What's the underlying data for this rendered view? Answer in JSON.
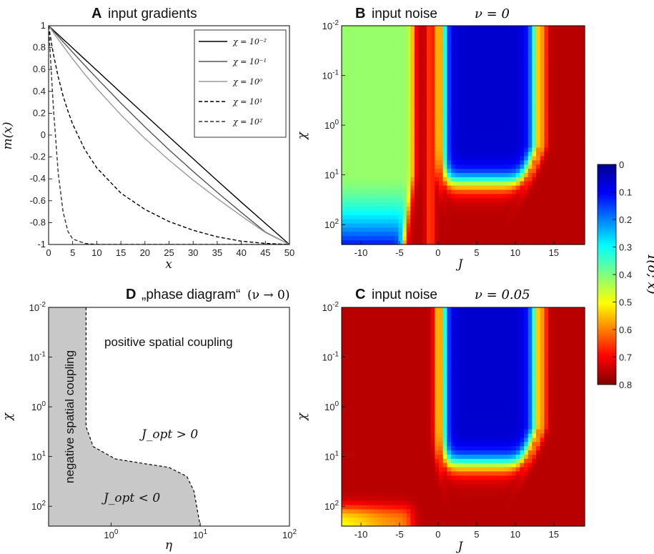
{
  "chart_data": [
    {
      "panel": "A",
      "type": "line",
      "title_letter": "A",
      "title": "input gradients",
      "xlabel": "x",
      "ylabel": "m(x)",
      "xlim": [
        0,
        50
      ],
      "ylim": [
        -1,
        1
      ],
      "xticks": [
        "0",
        "5",
        "10",
        "15",
        "20",
        "25",
        "30",
        "35",
        "40",
        "45",
        "50"
      ],
      "yticks": [
        "1",
        "0.8",
        "0.6",
        "0.4",
        "0.2",
        "0",
        "-0.2",
        "-0.4",
        "-0.6",
        "-0.8",
        "-1"
      ],
      "legend_position": "top-right",
      "series": [
        {
          "name": "χ = 10⁻²",
          "chi": 0.01,
          "style": "solid",
          "color": "#000000"
        },
        {
          "name": "χ = 10⁻¹",
          "chi": 0.1,
          "style": "solid",
          "color": "#555555"
        },
        {
          "name": "χ = 10⁰",
          "chi": 1,
          "style": "solid",
          "color": "#999999"
        },
        {
          "name": "χ = 10¹",
          "chi": 10,
          "style": "dashed",
          "color": "#000000"
        },
        {
          "name": "χ = 10²",
          "chi": 100,
          "style": "dashed",
          "color": "#333333"
        }
      ],
      "x": [
        0,
        1,
        2,
        3,
        4,
        5,
        7.5,
        10,
        15,
        20,
        25,
        30,
        35,
        40,
        45,
        50
      ],
      "values": [
        [
          1,
          0.959,
          0.918,
          0.877,
          0.837,
          0.796,
          0.694,
          0.592,
          0.388,
          0.186,
          -0.016,
          -0.216,
          -0.416,
          -0.613,
          -0.807,
          -1
        ],
        [
          1,
          0.951,
          0.902,
          0.853,
          0.805,
          0.757,
          0.638,
          0.521,
          0.293,
          0.075,
          -0.134,
          -0.332,
          -0.523,
          -0.707,
          -0.886,
          -1
        ],
        [
          1,
          0.937,
          0.875,
          0.815,
          0.755,
          0.697,
          0.557,
          0.426,
          0.185,
          -0.032,
          -0.229,
          -0.411,
          -0.58,
          -0.739,
          -0.891,
          -1
        ],
        [
          1,
          0.74,
          0.53,
          0.36,
          0.22,
          0.1,
          -0.13,
          -0.3,
          -0.53,
          -0.68,
          -0.79,
          -0.87,
          -0.93,
          -0.97,
          -0.99,
          -1
        ],
        [
          1,
          0.25,
          -0.35,
          -0.7,
          -0.88,
          -0.95,
          -0.99,
          -1,
          -1,
          -1,
          -1,
          -1,
          -1,
          -1,
          -1,
          -1
        ]
      ]
    },
    {
      "panel": "B",
      "type": "heatmap",
      "title_letter": "B",
      "title": "input noise",
      "title_math": "ν = 0",
      "xlabel": "J",
      "ylabel": "χ",
      "xlim": [
        -12.5,
        19
      ],
      "ylim_log10": [
        -2,
        2.4
      ],
      "xticks": [
        "-10",
        "-5",
        "0",
        "5",
        "10",
        "15"
      ],
      "yticks": [
        "10-2",
        "10-1",
        "100",
        "101",
        "102"
      ],
      "noise": 0
    },
    {
      "panel": "C",
      "type": "heatmap",
      "title_letter": "C",
      "title": "input noise",
      "title_math": "ν = 0.05",
      "xlabel": "J",
      "ylabel": "χ",
      "xlim": [
        -12.5,
        19
      ],
      "ylim_log10": [
        -2,
        2.4
      ],
      "xticks": [
        "-10",
        "-5",
        "0",
        "5",
        "10",
        "15"
      ],
      "yticks": [
        "10-2",
        "10-1",
        "100",
        "101",
        "102"
      ],
      "noise": 0.05
    },
    {
      "panel": "D",
      "type": "area",
      "title_letter": "D",
      "title": "„phase diagram“",
      "title_math": "(ν → 0)",
      "xlabel": "η",
      "ylabel": "χ",
      "xlim_log10": [
        -0.7,
        2
      ],
      "ylim_log10": [
        -2,
        2.4
      ],
      "xticks": [
        "100",
        "101",
        "102"
      ],
      "yticks": [
        "10-2",
        "10-1",
        "100",
        "101",
        "102"
      ],
      "boundary": {
        "log10_eta": [
          -0.28,
          -0.28,
          -0.2,
          0.05,
          0.4,
          0.65,
          0.85,
          0.93,
          0.97,
          1.0
        ],
        "log10_chi": [
          -2,
          0.4,
          0.8,
          1.05,
          1.15,
          1.22,
          1.4,
          1.7,
          2.1,
          2.4
        ]
      },
      "region_labels": {
        "positive": "positive spatial coupling",
        "negative": "negative spatial coupling",
        "jopt_pos": "J_opt > 0",
        "jopt_neg": "J_opt < 0"
      }
    }
  ],
  "colorbar": {
    "label": "I(σ; x)",
    "range": [
      0,
      0.8
    ],
    "ticks": [
      "0",
      "0.1",
      "0.2",
      "0.3",
      "0.4",
      "0.5",
      "0.6",
      "0.7",
      "0.8"
    ],
    "colormap": "jet-reversed"
  }
}
